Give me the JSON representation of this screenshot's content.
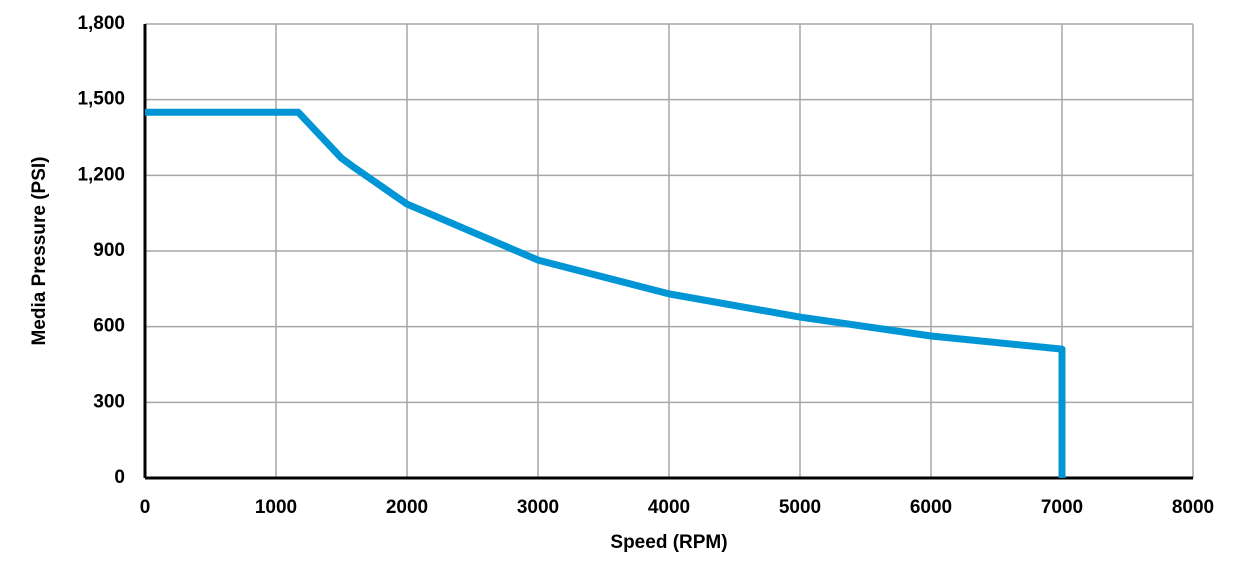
{
  "chart_data": {
    "type": "line",
    "x_label": "Speed (RPM)",
    "y_label": "Media Pressure (PSI)",
    "x": [
      0,
      1170,
      1500,
      1600,
      2000,
      3000,
      4000,
      5000,
      6000,
      7000,
      7000
    ],
    "series": [
      {
        "color": "#0096d6",
        "values": [
          1450,
          1450,
          1268,
          1230,
          1086,
          864,
          730,
          638,
          563,
          511,
          0
        ]
      }
    ],
    "xlim": [
      0,
      8000
    ],
    "xticks": [
      0,
      1000,
      2000,
      3000,
      4000,
      5000,
      6000,
      7000,
      8000
    ],
    "ylim": [
      0,
      1800
    ],
    "yticks": [
      0,
      300,
      600,
      900,
      {
        "value": 1200,
        "label": "1,200"
      },
      {
        "value": 1500,
        "label": "1,500"
      },
      {
        "value": 1800,
        "label": "1,800"
      }
    ],
    "grid": true
  }
}
